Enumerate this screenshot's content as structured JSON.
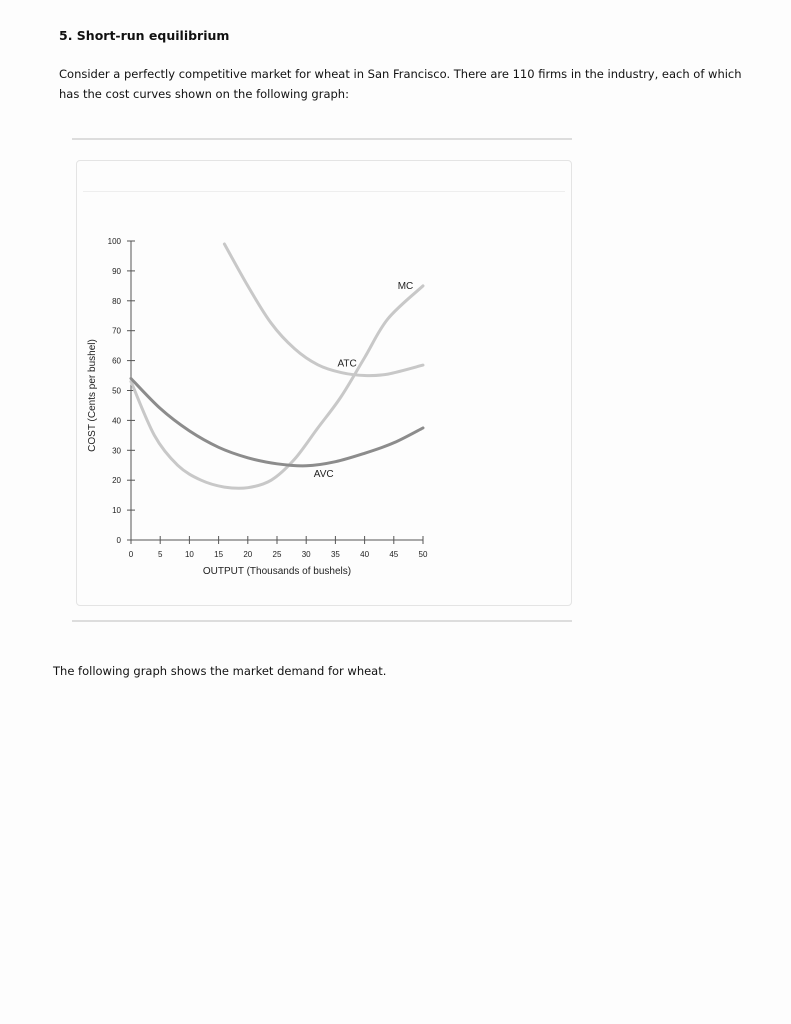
{
  "problem": {
    "title": "5. Short-run equilibrium",
    "intro": "Consider a perfectly competitive market for wheat in San Francisco. There are 110 firms in the industry, each of which has the cost curves shown on the following graph:",
    "closing": "The following graph shows the market demand for wheat."
  },
  "chart_data": {
    "type": "line",
    "xlabel": "OUTPUT (Thousands of bushels)",
    "ylabel": "COST (Cents per bushel)",
    "xlim": [
      0,
      50
    ],
    "ylim": [
      0,
      100
    ],
    "x_ticks": [
      0,
      5,
      10,
      15,
      20,
      25,
      30,
      35,
      40,
      45,
      50
    ],
    "y_ticks": [
      0,
      10,
      20,
      30,
      40,
      50,
      60,
      70,
      80,
      90,
      100
    ],
    "grid": false,
    "series": [
      {
        "name": "ATC",
        "color": "#c8c8c8",
        "points": [
          [
            16,
            99
          ],
          [
            20,
            85
          ],
          [
            24,
            72.5
          ],
          [
            28,
            64
          ],
          [
            32,
            58.6
          ],
          [
            36,
            56
          ],
          [
            40,
            55
          ],
          [
            44,
            55.5
          ],
          [
            50,
            58.5
          ]
        ]
      },
      {
        "name": "MC",
        "color": "#c8c8c8",
        "points": [
          [
            0,
            53
          ],
          [
            4,
            35
          ],
          [
            8,
            25
          ],
          [
            12,
            20
          ],
          [
            16,
            17.7
          ],
          [
            20,
            17.5
          ],
          [
            24,
            20
          ],
          [
            28,
            27
          ],
          [
            32,
            37.5
          ],
          [
            36,
            48
          ],
          [
            40,
            61
          ],
          [
            44,
            74
          ],
          [
            50,
            85
          ]
        ]
      },
      {
        "name": "AVC",
        "color": "#8c8c8c",
        "points": [
          [
            0,
            54
          ],
          [
            5,
            44
          ],
          [
            10,
            36.5
          ],
          [
            15,
            31
          ],
          [
            20,
            27.5
          ],
          [
            25,
            25.5
          ],
          [
            30,
            24.8
          ],
          [
            35,
            26.2
          ],
          [
            40,
            29
          ],
          [
            45,
            32.5
          ],
          [
            50,
            37.5
          ]
        ]
      }
    ],
    "annotations": [
      {
        "text": "MC",
        "x": 47,
        "y": 84
      },
      {
        "text": "ATC",
        "x": 37,
        "y": 58
      },
      {
        "text": "AVC",
        "x": 33,
        "y": 21
      }
    ]
  }
}
